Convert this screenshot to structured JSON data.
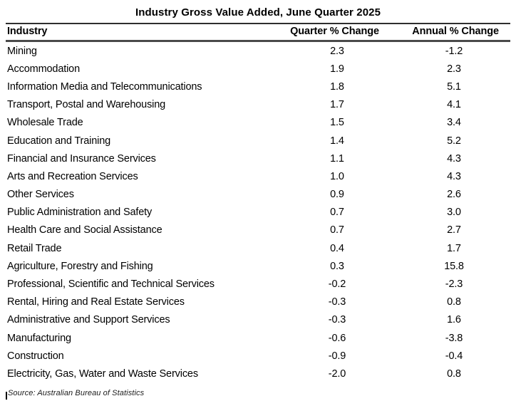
{
  "title": "Industry Gross Value Added, June Quarter 2025",
  "table": {
    "columns": [
      "Industry",
      "Quarter % Change",
      "Annual % Change"
    ],
    "rows": [
      {
        "industry": "Mining",
        "quarter": "2.3",
        "annual": "-1.2"
      },
      {
        "industry": "Accommodation",
        "quarter": "1.9",
        "annual": "2.3"
      },
      {
        "industry": "Information Media and Telecommunications",
        "quarter": "1.8",
        "annual": "5.1"
      },
      {
        "industry": "Transport, Postal and Warehousing",
        "quarter": "1.7",
        "annual": "4.1"
      },
      {
        "industry": "Wholesale Trade",
        "quarter": "1.5",
        "annual": "3.4"
      },
      {
        "industry": "Education and Training",
        "quarter": "1.4",
        "annual": "5.2"
      },
      {
        "industry": "Financial and Insurance Services",
        "quarter": "1.1",
        "annual": "4.3"
      },
      {
        "industry": "Arts and Recreation Services",
        "quarter": "1.0",
        "annual": "4.3"
      },
      {
        "industry": "Other Services",
        "quarter": "0.9",
        "annual": "2.6"
      },
      {
        "industry": "Public Administration and Safety",
        "quarter": "0.7",
        "annual": "3.0"
      },
      {
        "industry": "Health Care and Social Assistance",
        "quarter": "0.7",
        "annual": "2.7"
      },
      {
        "industry": "Retail Trade",
        "quarter": "0.4",
        "annual": "1.7"
      },
      {
        "industry": "Agriculture, Forestry and Fishing",
        "quarter": "0.3",
        "annual": "15.8"
      },
      {
        "industry": "Professional, Scientific and Technical Services",
        "quarter": "-0.2",
        "annual": "-2.3"
      },
      {
        "industry": "Rental, Hiring and Real Estate Services",
        "quarter": "-0.3",
        "annual": "0.8"
      },
      {
        "industry": "Administrative and Support Services",
        "quarter": "-0.3",
        "annual": "1.6"
      },
      {
        "industry": "Manufacturing",
        "quarter": "-0.6",
        "annual": "-3.8"
      },
      {
        "industry": "Construction",
        "quarter": "-0.9",
        "annual": "-0.4"
      },
      {
        "industry": "Electricity, Gas, Water and Waste Services",
        "quarter": "-2.0",
        "annual": "0.8"
      }
    ]
  },
  "source": "Source: Australian Bureau of Statistics"
}
